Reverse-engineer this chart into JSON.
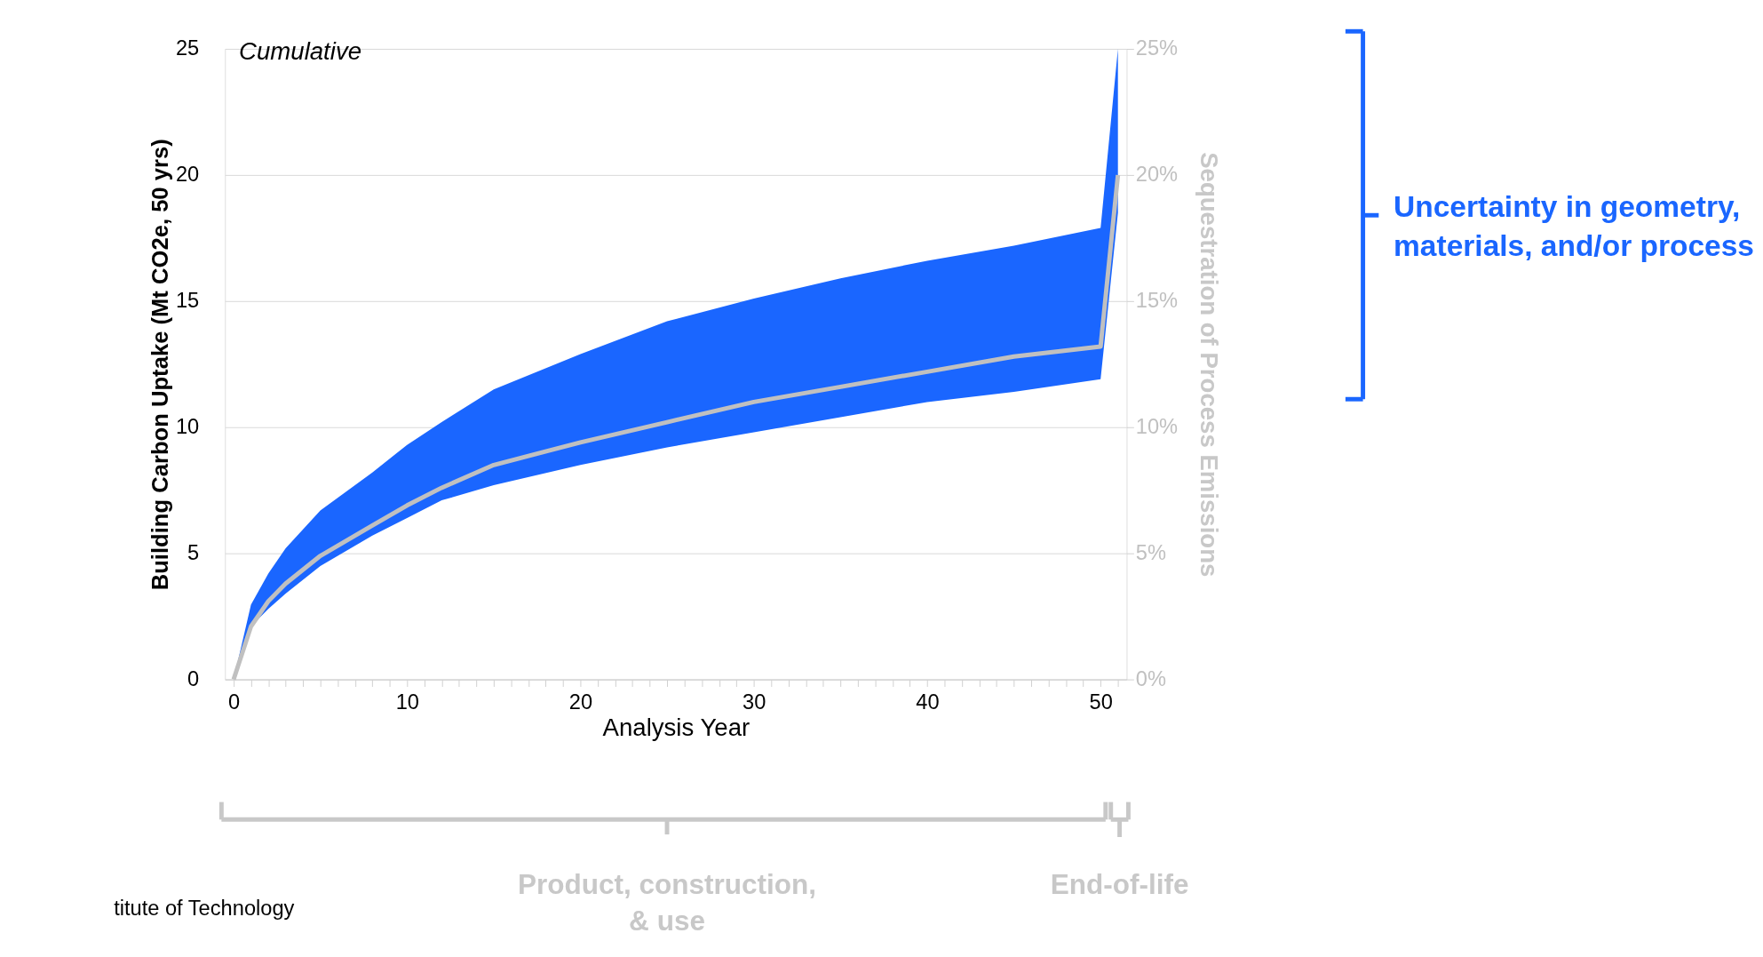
{
  "chart_data": {
    "type": "line",
    "xlabel": "Analysis Year",
    "ylabel": "Building Carbon Uptake (Mt CO2e, 50 yrs)",
    "y2label": "Sequestration of Process Emissions",
    "x": [
      0,
      1,
      2,
      3,
      5,
      8,
      10,
      12,
      15,
      20,
      25,
      30,
      35,
      40,
      45,
      50,
      51
    ],
    "series": [
      {
        "axis": "y2",
        "color": "#c0c0c0",
        "colors": [
          "#1a66ff",
          "#1a66ff",
          "#1a66ff",
          "#1a66ff",
          "#1a66ff",
          "#1a66ff",
          "#1a66ff",
          "#1a66ff",
          "#1a66ff",
          "#1a66ff",
          "#1a66ff",
          "#1a66ff",
          "#1a66ff",
          "#1a66ff",
          "#1a66ff",
          "#1a66ff",
          "#1a66ff"
        ],
        "values": [
          0,
          2.1,
          3.1,
          3.8,
          4.9,
          6.1,
          6.9,
          7.6,
          8.5,
          9.4,
          10.2,
          11.0,
          11.6,
          12.2,
          12.8,
          13.2,
          20
        ],
        "lower": [
          0,
          2.1,
          2.8,
          3.4,
          4.5,
          5.7,
          6.4,
          7.1,
          7.7,
          8.5,
          9.2,
          9.8,
          10.4,
          11.0,
          11.4,
          11.9,
          18.5
        ],
        "upper": [
          0,
          2.96,
          4.2,
          5.2,
          6.7,
          8.2,
          9.3,
          10.2,
          11.5,
          12.9,
          14.2,
          15.1,
          15.9,
          16.6,
          17.2,
          17.9,
          25
        ]
      }
    ],
    "xlim": [
      -0.5,
      51.5
    ],
    "xticks": [
      0,
      {
        "value": 1,
        "label": null
      },
      {
        "value": 2,
        "label": null
      },
      {
        "value": 3,
        "label": null
      },
      {
        "value": 4,
        "label": null
      },
      {
        "value": 5,
        "label": null
      },
      {
        "value": 6,
        "label": null
      },
      {
        "value": 7,
        "label": null
      },
      {
        "value": 8,
        "label": null
      },
      {
        "value": 9,
        "label": null
      },
      10,
      {
        "value": 11,
        "label": null
      },
      {
        "value": 12,
        "label": null
      },
      {
        "value": 13,
        "label": null
      },
      {
        "value": 14,
        "label": null
      },
      {
        "value": 15,
        "label": null
      },
      {
        "value": 16,
        "label": null
      },
      {
        "value": 17,
        "label": null
      },
      {
        "value": 18,
        "label": null
      },
      {
        "value": 19,
        "label": null
      },
      20,
      {
        "value": 21,
        "label": null
      },
      {
        "value": 22,
        "label": null
      },
      {
        "value": 23,
        "label": null
      },
      {
        "value": 24,
        "label": null
      },
      {
        "value": 25,
        "label": null
      },
      {
        "value": 26,
        "label": null
      },
      {
        "value": 27,
        "label": null
      },
      {
        "value": 28,
        "label": null
      },
      {
        "value": 29,
        "label": null
      },
      30,
      {
        "value": 31,
        "label": null
      },
      {
        "value": 32,
        "label": null
      },
      {
        "value": 33,
        "label": null
      },
      {
        "value": 34,
        "label": null
      },
      {
        "value": 35,
        "label": null
      },
      {
        "value": 36,
        "label": null
      },
      {
        "value": 37,
        "label": null
      },
      {
        "value": 38,
        "label": null
      },
      {
        "value": 39,
        "label": null
      },
      40,
      {
        "value": 41,
        "label": null
      },
      {
        "value": 42,
        "label": null
      },
      {
        "value": 43,
        "label": null
      },
      {
        "value": 44,
        "label": null
      },
      {
        "value": 45,
        "label": null
      },
      {
        "value": 46,
        "label": null
      },
      {
        "value": 47,
        "label": null
      },
      {
        "value": 48,
        "label": null
      },
      {
        "value": 49,
        "label": null
      },
      50,
      {
        "value": 51,
        "label": null
      }
    ],
    "ylim": [
      0,
      25
    ],
    "yticks": [
      0,
      5,
      10,
      15,
      20,
      25
    ],
    "y2lim": [
      0,
      25
    ],
    "y2ticks": [
      {
        "value": 0,
        "label": "0%"
      },
      {
        "value": 5,
        "label": "5%"
      },
      {
        "value": 10,
        "label": "10%"
      },
      {
        "value": 15,
        "label": "15%"
      },
      {
        "value": 20,
        "label": "20%"
      },
      {
        "value": 25,
        "label": "25%"
      }
    ],
    "grid": "y",
    "annotations": [
      "Cumulative",
      "Uncertainty in geometry,\nmaterials, and/or process",
      "Product, construction,\n& use",
      "End-of-life",
      "titute of Technology"
    ]
  }
}
